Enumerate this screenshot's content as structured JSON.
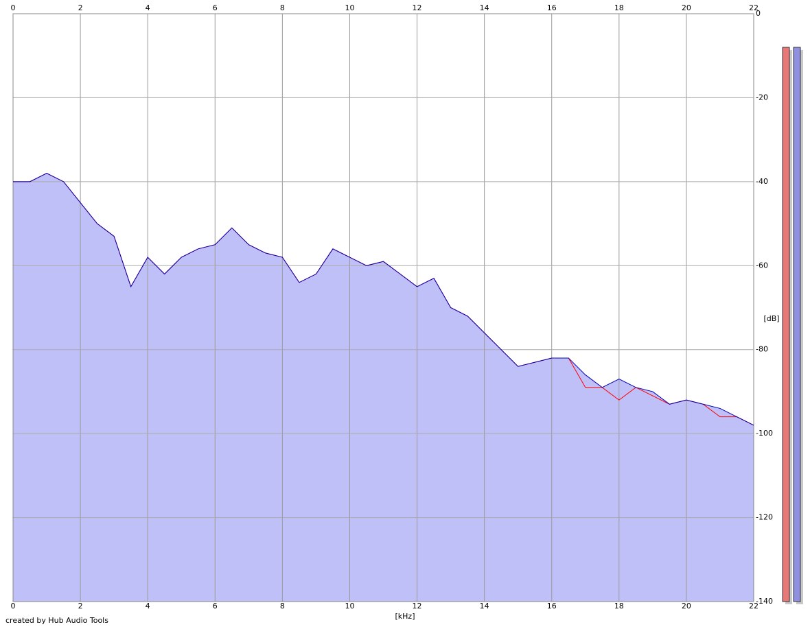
{
  "chart_data": {
    "type": "line",
    "xlabel": "[kHz]",
    "ylabel": "[dB]",
    "footer": "created by Hub Audio Tools",
    "x": [
      0,
      0.5,
      1,
      1.5,
      2,
      2.5,
      3,
      3.5,
      4,
      4.5,
      5,
      5.5,
      6,
      6.5,
      7,
      7.5,
      8,
      8.5,
      9,
      9.5,
      10,
      10.5,
      11,
      11.5,
      12,
      12.5,
      13,
      13.5,
      14,
      14.5,
      15,
      15.5,
      16,
      16.5,
      17,
      17.5,
      18,
      18.5,
      19,
      19.5,
      20,
      20.5,
      21,
      21.5,
      22
    ],
    "series": [
      {
        "color": "#ff0000",
        "values": [
          -40,
          -40,
          -38,
          -40,
          -45,
          -50,
          -53,
          -65,
          -58,
          -62,
          -58,
          -56,
          -55,
          -51,
          -55,
          -57,
          -58,
          -64,
          -62,
          -56,
          -58,
          -60,
          -59,
          -62,
          -65,
          -63,
          -70,
          -72,
          -76,
          -80,
          -84,
          -83,
          -82,
          -82,
          -89,
          -89,
          -92,
          -89,
          -91,
          -93,
          -92,
          -93,
          -96,
          -96,
          -98
        ]
      },
      {
        "color": "#0000b0",
        "fill": "#c0c0f8",
        "values": [
          -40,
          -40,
          -38,
          -40,
          -45,
          -50,
          -53,
          -65,
          -58,
          -62,
          -58,
          -56,
          -55,
          -51,
          -55,
          -57,
          -58,
          -64,
          -62,
          -56,
          -58,
          -60,
          -59,
          -62,
          -65,
          -63,
          -70,
          -72,
          -76,
          -80,
          -84,
          -83,
          -82,
          -82,
          -86,
          -89,
          -87,
          -89,
          -90,
          -93,
          -92,
          -93,
          -94,
          -96,
          -98
        ]
      }
    ],
    "xlim": [
      0,
      22
    ],
    "xticks": [
      0,
      2,
      4,
      6,
      8,
      10,
      12,
      14,
      16,
      18,
      20,
      22
    ],
    "ylim": [
      -140,
      0
    ],
    "yticks": [
      0,
      -20,
      -40,
      -60,
      -80,
      -100,
      -120,
      -140
    ],
    "grid": true,
    "meters": [
      {
        "color": "#e87878",
        "value": -8
      },
      {
        "color": "#9090e0",
        "value": -8
      }
    ]
  }
}
